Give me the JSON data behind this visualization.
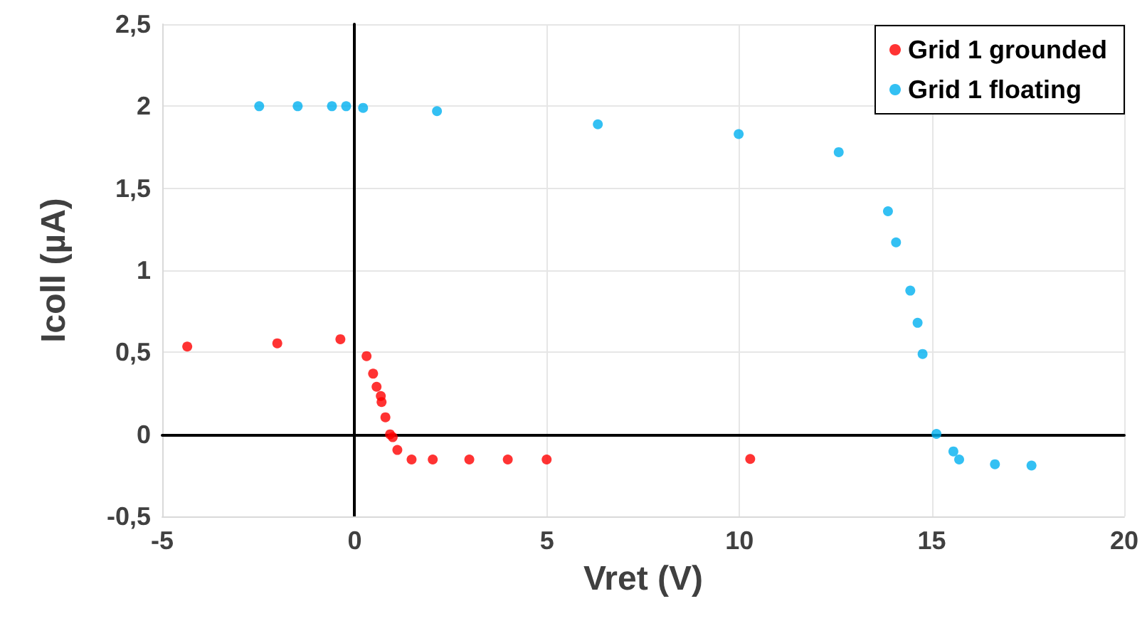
{
  "chart_data": {
    "type": "scatter",
    "xlabel": "Vret (V)",
    "ylabel": "Icoll (µA)",
    "xlim": [
      -5,
      20
    ],
    "xticks": [
      -5,
      0,
      5,
      10,
      15,
      20
    ],
    "ylim": [
      -0.5,
      2.5
    ],
    "yticks": [
      {
        "value": -0.5,
        "label": "-0,5"
      },
      0,
      {
        "value": 0.5,
        "label": "0,5"
      },
      1,
      {
        "value": 1.5,
        "label": "1,5"
      },
      2,
      {
        "value": 2.5,
        "label": "2,5"
      }
    ],
    "grid": true,
    "legend": "top right",
    "marker": "circle",
    "series": [
      {
        "name": "Grid 1 grounded",
        "color": "#ff0000",
        "x": [
          -4.35,
          -2.01,
          -0.37,
          0.31,
          0.48,
          0.57,
          0.68,
          0.7,
          0.8,
          0.92,
          0.99,
          1.11,
          1.48,
          2.03,
          2.98,
          3.98,
          4.99,
          10.28
        ],
        "values": [
          0.535,
          0.555,
          0.58,
          0.477,
          0.37,
          0.29,
          0.234,
          0.197,
          0.104,
          0.0,
          -0.017,
          -0.095,
          -0.153,
          -0.153,
          -0.153,
          -0.153,
          -0.153,
          -0.15
        ]
      },
      {
        "name": "Grid 1 floating",
        "color": "#00b0f0",
        "x": [
          -2.48,
          -1.48,
          -0.59,
          -0.22,
          0.22,
          2.14,
          6.32,
          9.98,
          12.58,
          13.86,
          14.07,
          14.44,
          14.63,
          14.76,
          15.12,
          15.56,
          15.71,
          16.64,
          17.59
        ],
        "values": [
          2.0,
          2.0,
          2.0,
          2.0,
          1.99,
          1.97,
          1.89,
          1.83,
          1.72,
          1.36,
          1.17,
          0.876,
          0.68,
          0.49,
          0.003,
          -0.104,
          -0.153,
          -0.182,
          -0.19
        ]
      }
    ]
  }
}
